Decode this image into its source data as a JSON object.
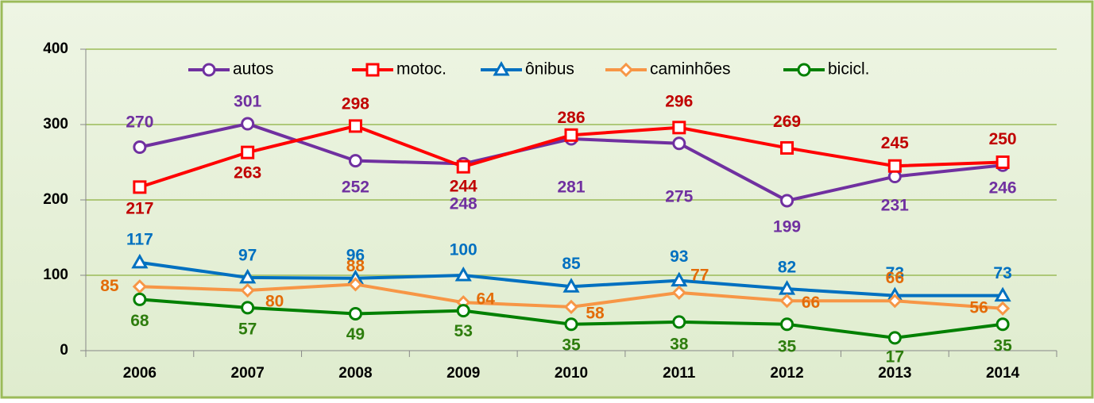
{
  "chart_data": {
    "type": "line",
    "categories": [
      "2006",
      "2007",
      "2008",
      "2009",
      "2010",
      "2011",
      "2012",
      "2013",
      "2014"
    ],
    "series": [
      {
        "name": "autos",
        "color": "#7030a0",
        "label_color": "#7030a0",
        "marker": "circle",
        "values": [
          270,
          301,
          252,
          248,
          281,
          275,
          199,
          231,
          246
        ]
      },
      {
        "name": "motoc.",
        "color": "#ff0000",
        "label_color": "#c00000",
        "marker": "square",
        "values": [
          217,
          263,
          298,
          244,
          286,
          296,
          269,
          245,
          250
        ]
      },
      {
        "name": "ônibus",
        "color": "#0070c0",
        "label_color": "#0070c0",
        "marker": "triangle",
        "values": [
          117,
          97,
          96,
          100,
          85,
          93,
          82,
          73,
          73
        ]
      },
      {
        "name": "caminhões",
        "color": "#f79646",
        "label_color": "#e36c09",
        "marker": "diamond",
        "values": [
          85,
          80,
          88,
          64,
          58,
          77,
          66,
          66,
          56
        ]
      },
      {
        "name": "bicicl.",
        "color": "#008000",
        "label_color": "#2e7d0e",
        "marker": "circle",
        "values": [
          68,
          57,
          49,
          53,
          35,
          38,
          35,
          17,
          35
        ]
      }
    ],
    "ylim": [
      0,
      400
    ],
    "yticks": [
      0,
      100,
      200,
      300,
      400
    ],
    "grid": true,
    "legend": "top"
  }
}
